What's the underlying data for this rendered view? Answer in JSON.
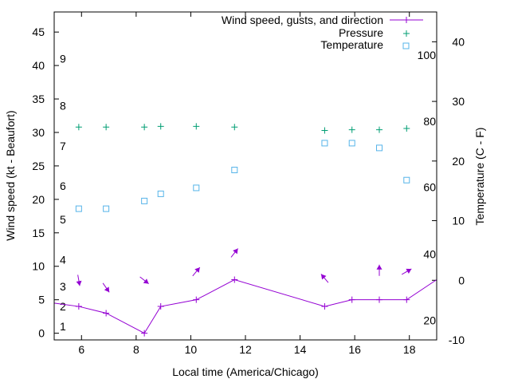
{
  "chart_data": {
    "type": "line",
    "xlabel": "Local time (America/Chicago)",
    "ylabel": "Wind speed (kt - Beaufort)",
    "y2label": "Temperature (C - F)",
    "xlim": [
      5,
      19
    ],
    "ylim": [
      -1,
      48
    ],
    "y2lim": [
      -10,
      45
    ],
    "x_ticks": [
      6,
      8,
      10,
      12,
      14,
      16,
      18
    ],
    "y_ticks": [
      0,
      5,
      10,
      15,
      20,
      25,
      30,
      35,
      40,
      45
    ],
    "y2_ticks": [
      -10,
      0,
      10,
      20,
      30,
      40
    ],
    "beaufort_labels": [
      {
        "label": "1",
        "kt": 1
      },
      {
        "label": "2",
        "kt": 4
      },
      {
        "label": "3",
        "kt": 7
      },
      {
        "label": "4",
        "kt": 11
      },
      {
        "label": "5",
        "kt": 17
      },
      {
        "label": "6",
        "kt": 22
      },
      {
        "label": "7",
        "kt": 28
      },
      {
        "label": "8",
        "kt": 34
      },
      {
        "label": "9",
        "kt": 41
      }
    ],
    "fahrenheit_labels": [
      {
        "label": "20",
        "c": -6.7
      },
      {
        "label": "40",
        "c": 4.4
      },
      {
        "label": "60",
        "c": 15.6
      },
      {
        "label": "80",
        "c": 26.7
      },
      {
        "label": "100",
        "c": 37.8
      }
    ],
    "series": [
      {
        "name": "Wind speed, gusts, and direction",
        "color": "#9400d3",
        "x": [
          5,
          5.9,
          6.9,
          8.3,
          8.9,
          10.2,
          11.6,
          14.9,
          15.9,
          16.9,
          17.9,
          19
        ],
        "values": [
          4.5,
          4,
          3,
          0,
          4,
          5,
          8,
          4,
          5,
          5,
          5,
          8
        ]
      },
      {
        "name": "Pressure",
        "color": "#009e73",
        "y_axis": "wind",
        "x": [
          5.9,
          6.9,
          8.3,
          8.9,
          10.2,
          11.6,
          14.9,
          15.9,
          16.9,
          17.9
        ],
        "values": [
          30.8,
          30.8,
          30.8,
          30.9,
          30.9,
          30.8,
          30.3,
          30.4,
          30.4,
          30.6
        ]
      },
      {
        "name": "Temperature",
        "color": "#56b4e9",
        "y_axis": "temperature",
        "x": [
          5.9,
          6.9,
          8.3,
          8.9,
          10.2,
          11.6,
          14.9,
          15.9,
          16.9,
          17.9
        ],
        "values": [
          12,
          12,
          13.3,
          14.5,
          15.5,
          18.5,
          23,
          23,
          22.2,
          16.8
        ]
      }
    ],
    "wind_arrows": [
      {
        "x": 5.9,
        "speed": 7.9,
        "toward": 170
      },
      {
        "x": 6.9,
        "speed": 6.8,
        "toward": 145
      },
      {
        "x": 8.3,
        "speed": 7.9,
        "toward": 128
      },
      {
        "x": 10.2,
        "speed": 9.2,
        "toward": 40
      },
      {
        "x": 11.6,
        "speed": 12.0,
        "toward": 38
      },
      {
        "x": 14.9,
        "speed": 8.2,
        "toward": 320
      },
      {
        "x": 16.9,
        "speed": 9.4,
        "toward": 0
      },
      {
        "x": 17.9,
        "speed": 9.2,
        "toward": 60
      }
    ]
  }
}
